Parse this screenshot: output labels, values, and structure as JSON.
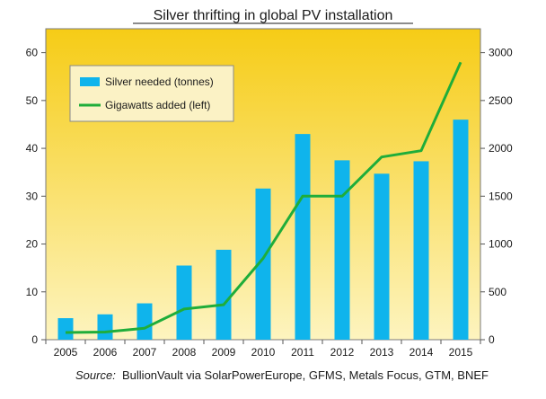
{
  "chart_data": {
    "type": "bar",
    "title": "Silver thrifting  in global PV installation",
    "source_label": "Source:",
    "source_text": "BullionVault via SolarPowerEurope, GFMS, Metals Focus, GTM, BNEF",
    "categories": [
      "2005",
      "2006",
      "2007",
      "2008",
      "2009",
      "2010",
      "2011",
      "2012",
      "2013",
      "2014",
      "2015"
    ],
    "series": [
      {
        "name": "Silver needed (tonnes)",
        "type": "bar",
        "axis": "right",
        "color": "#0fb4ec",
        "values": [
          225,
          265,
          380,
          775,
          940,
          1580,
          2150,
          1875,
          1735,
          1865,
          2300
        ]
      },
      {
        "name": "Gigawatts added (left)",
        "type": "line",
        "axis": "left",
        "color": "#1fad3a",
        "values": [
          1.5,
          1.6,
          2.4,
          6.4,
          7.3,
          17.0,
          30.0,
          30.0,
          38.2,
          39.5,
          58.0
        ]
      }
    ],
    "y_left": {
      "ylim": [
        0,
        65
      ],
      "ticks": [
        0,
        10,
        20,
        30,
        40,
        50,
        60
      ]
    },
    "y_right": {
      "ylim": [
        0,
        3250
      ],
      "ticks": [
        0,
        500,
        1000,
        1500,
        2000,
        2500,
        3000
      ]
    },
    "legend": {
      "position": "top-left"
    },
    "grid": false,
    "background_gradient": [
      "#f6cc16",
      "#fdf4bf"
    ]
  }
}
